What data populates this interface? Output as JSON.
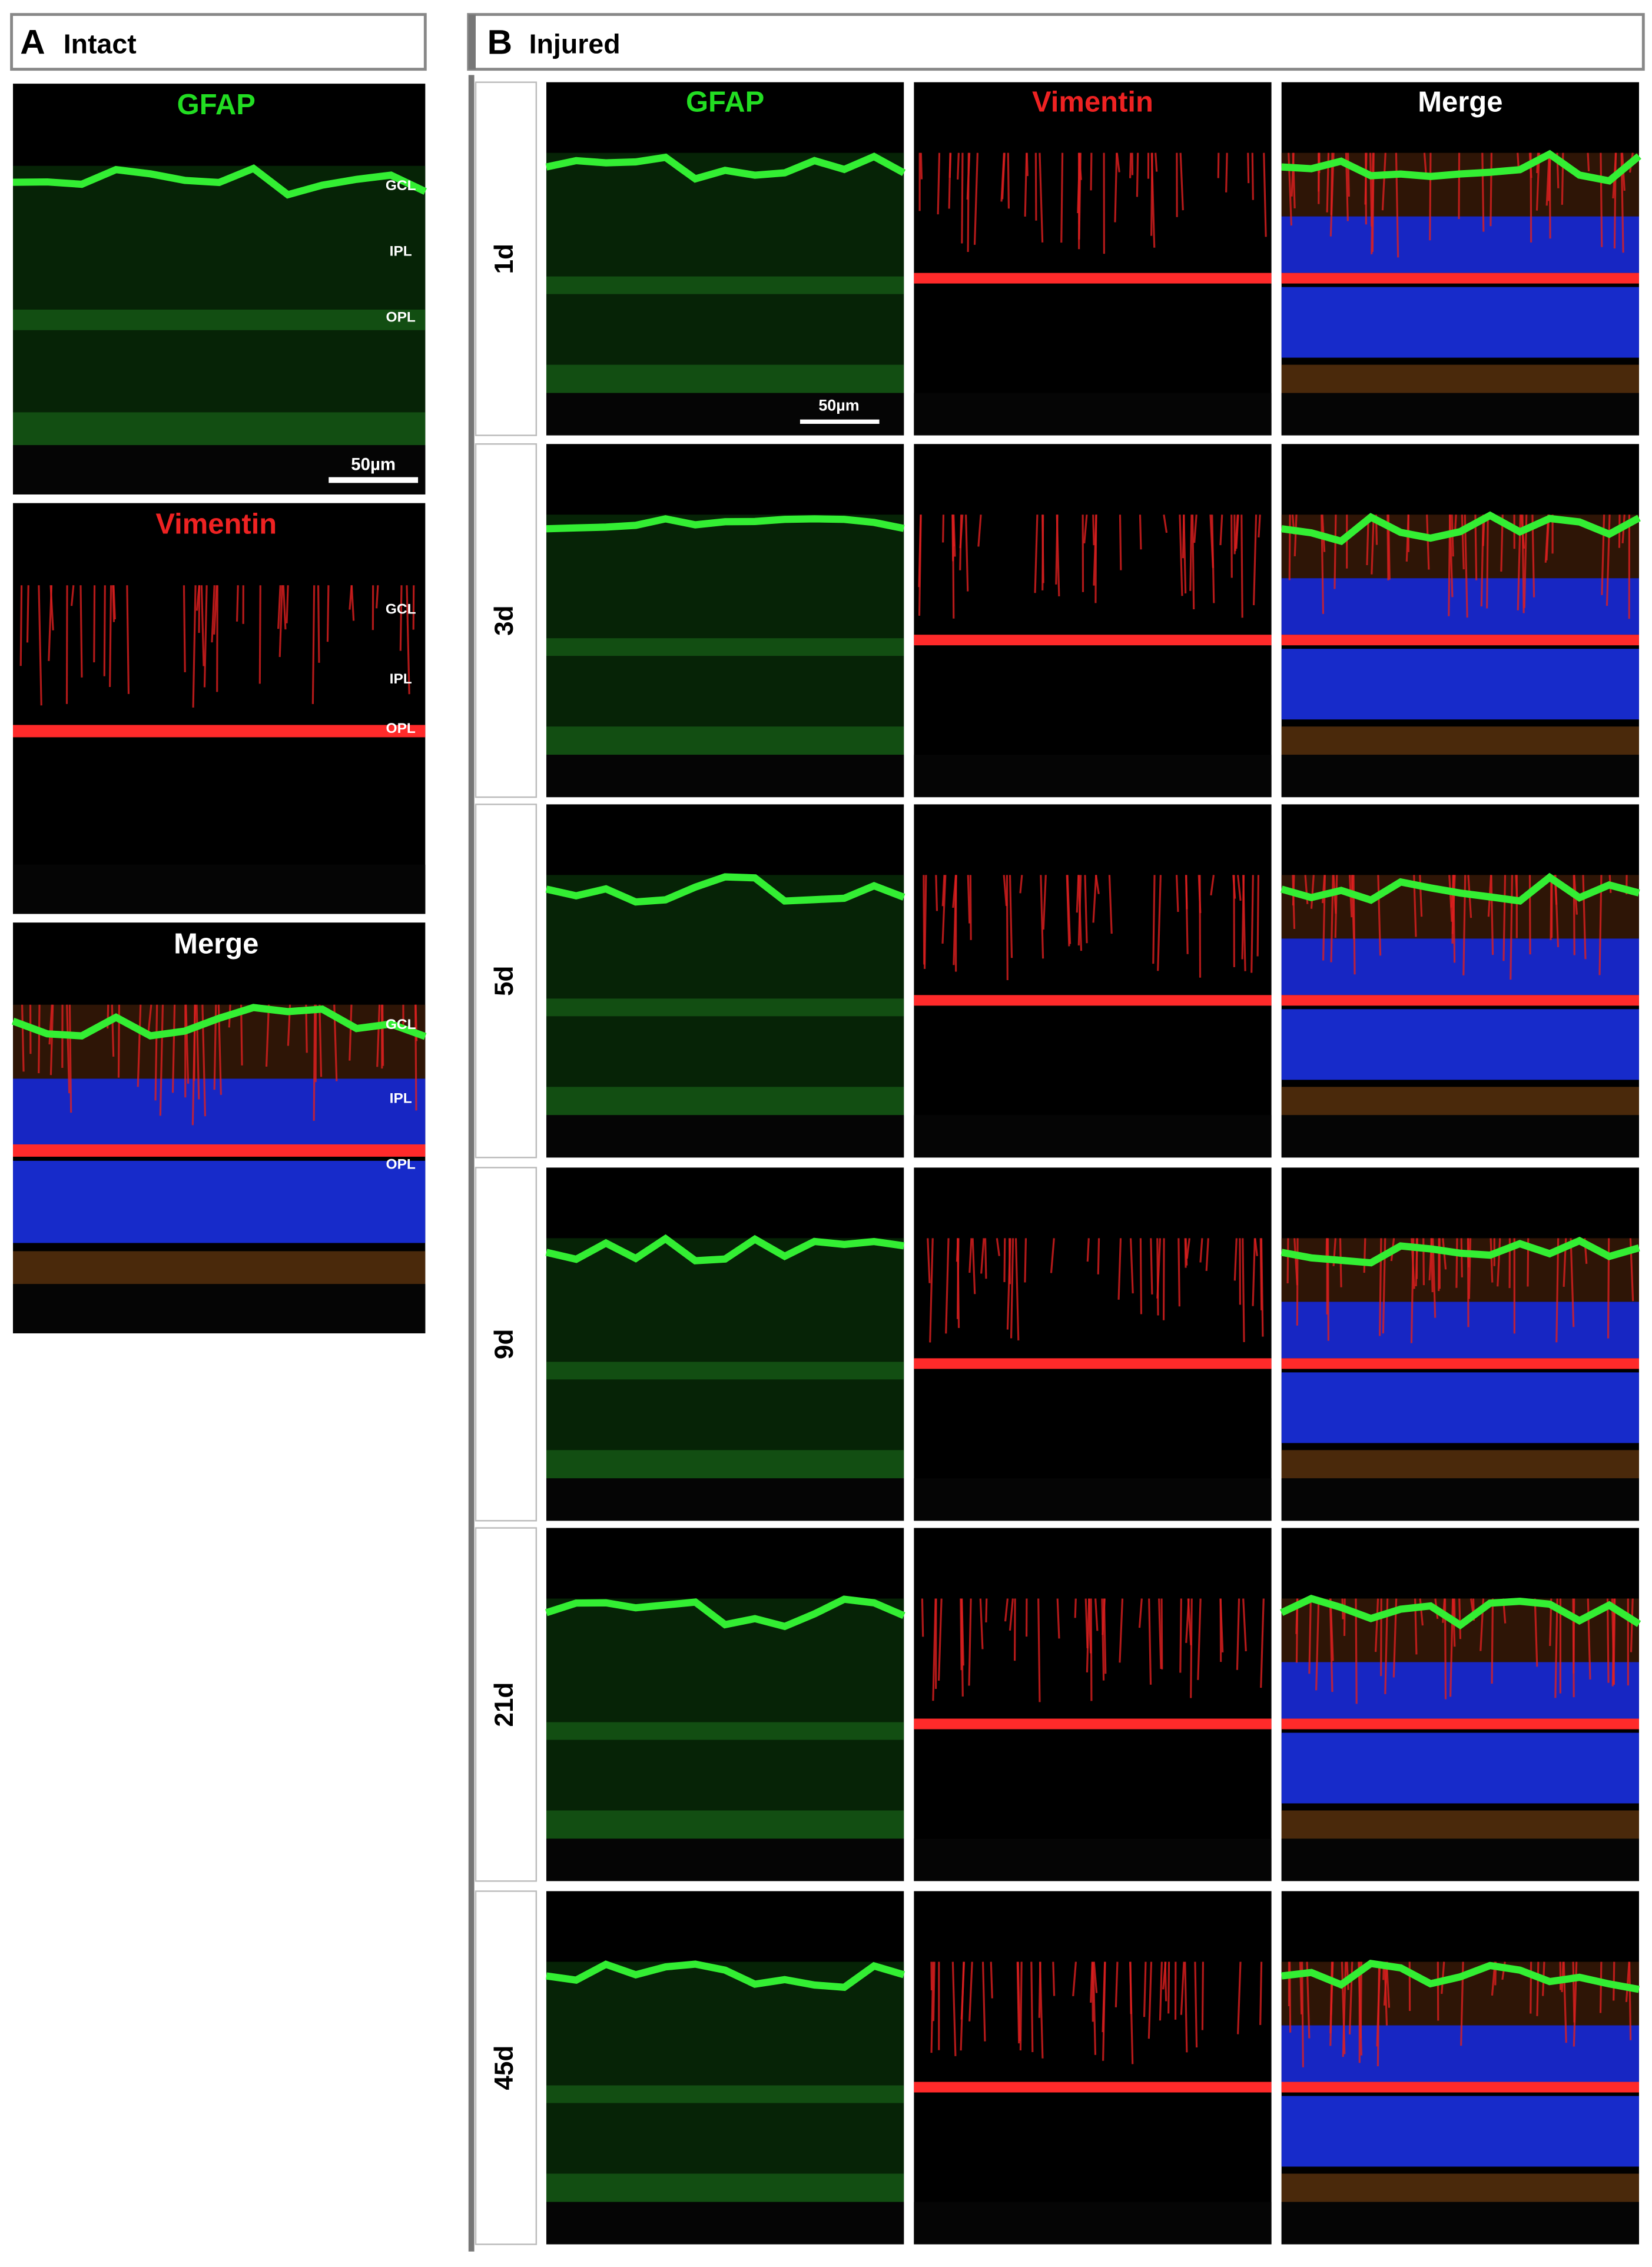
{
  "panel_a": {
    "label": "A",
    "title": "Intact",
    "images": [
      {
        "title": "GFAP",
        "layers": [
          "GCL",
          "IPL",
          "OPL"
        ]
      },
      {
        "title": "Vimentin",
        "layers": [
          "GCL",
          "IPL",
          "OPL"
        ]
      },
      {
        "title": "Merge",
        "layers": [
          "GCL",
          "IPL",
          "OPL"
        ]
      }
    ],
    "scale_bar": "50µm"
  },
  "panel_b": {
    "label": "B",
    "title": "Injured",
    "columns": [
      "GFAP",
      "Vimentin",
      "Merge"
    ],
    "rows": [
      "1d",
      "3d",
      "5d",
      "9d",
      "21d",
      "45d"
    ],
    "scale_bar": "50µm"
  }
}
